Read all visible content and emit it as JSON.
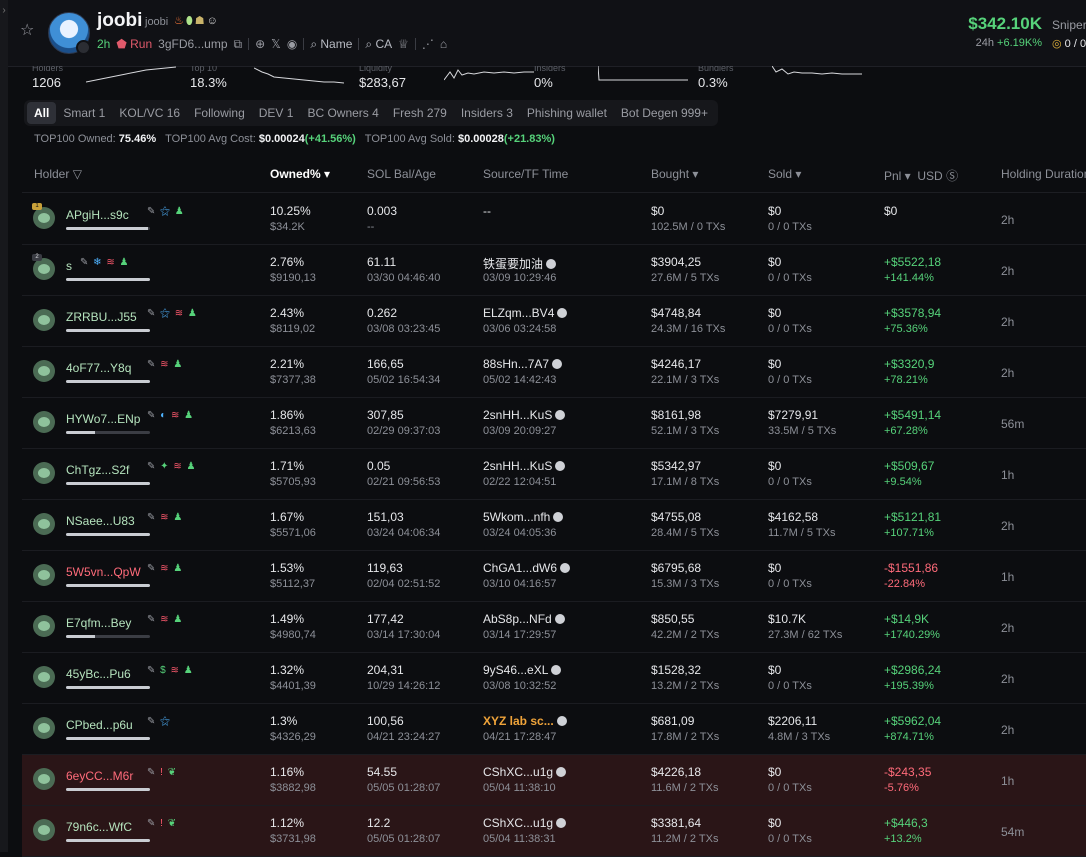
{
  "token": {
    "name": "joobi",
    "symbol": "joobi",
    "age": "2h",
    "run_label": "Run",
    "address": "3gFD6...ump",
    "name_link": "Name",
    "ca_link": "CA",
    "price": "$342.10K",
    "change_period": "24h",
    "change": "+6.19K%",
    "sniper_label": "Sniper",
    "sniper_value": "0 / 0"
  },
  "stats": [
    {
      "label": "Holders",
      "value": "1206"
    },
    {
      "label": "Top 10",
      "value": "18.3%"
    },
    {
      "label": "Liquidity",
      "value": "$283,67"
    },
    {
      "label": "Insiders",
      "value": "0%"
    },
    {
      "label": "Bundlers",
      "value": "0.3%"
    }
  ],
  "filters": [
    {
      "label": "All",
      "active": true
    },
    {
      "label": "Smart 1"
    },
    {
      "label": "KOL/VC 16"
    },
    {
      "label": "Following"
    },
    {
      "label": "DEV 1"
    },
    {
      "label": "BC Owners 4"
    },
    {
      "label": "Fresh 279"
    },
    {
      "label": "Insiders 3"
    },
    {
      "label": "Phishing wallet"
    },
    {
      "label": "Bot Degen 999+"
    }
  ],
  "summary": {
    "owned_label": "TOP100 Owned:",
    "owned_value": "75.46%",
    "avg_cost_label": "TOP100 Avg Cost:",
    "avg_cost_value": "$0.00024",
    "avg_cost_change": "(+41.56%)",
    "avg_sold_label": "TOP100 Avg Sold:",
    "avg_sold_value": "$0.00028",
    "avg_sold_change": "(+21.83%)"
  },
  "columns": {
    "holder": "Holder",
    "owned": "Owned% ▾",
    "sol": "SOL Bal/Age",
    "source": "Source/TF Time",
    "bought": "Bought ▾",
    "sold": "Sold ▾",
    "pnl": "Pnl ▾",
    "usd": "USD",
    "duration": "Holding Duration"
  },
  "holders": [
    {
      "rank": "1",
      "name": "APgiH...s9c",
      "bar": 0.98,
      "tags": "✎ ⚝ ♟",
      "owned": "10.25%",
      "owned_usd": "$34.2K",
      "sol": "0.003",
      "age": "--",
      "source": "--",
      "source_time": "",
      "bought": "$0",
      "bought_sub": "102.5M / 0 TXs",
      "sold": "$0",
      "sold_sub": "0 / 0 TXs",
      "pnl": "$0",
      "pnl_pct": "",
      "pnl_type": "neutral",
      "duration": "2h",
      "flag": false,
      "name_red": false
    },
    {
      "rank": "2",
      "name": "s",
      "bar": 1.0,
      "tags": "✎ ❄ ≋ ♟",
      "owned": "2.76%",
      "owned_usd": "$9190,13",
      "sol": "61.11",
      "age": "03/30 04:46:40",
      "source": "铁蛋要加油",
      "source_time": "03/09 10:29:46",
      "bought": "$3904,25",
      "bought_sub": "27.6M / 5 TXs",
      "sold": "$0",
      "sold_sub": "0 / 0 TXs",
      "pnl": "+$5522,18",
      "pnl_pct": "+141.44%",
      "pnl_type": "pos",
      "duration": "2h",
      "flag": false,
      "name_red": false
    },
    {
      "rank": "",
      "name": "ZRRBU...J55",
      "bar": 1.0,
      "tags": "✎ ⚝ ≋ ♟",
      "owned": "2.43%",
      "owned_usd": "$8119,02",
      "sol": "0.262",
      "age": "03/08 03:23:45",
      "source": "ELZqm...BV4",
      "source_time": "03/06 03:24:58",
      "bought": "$4748,84",
      "bought_sub": "24.3M / 16 TXs",
      "sold": "$0",
      "sold_sub": "0 / 0 TXs",
      "pnl": "+$3578,94",
      "pnl_pct": "+75.36%",
      "pnl_type": "pos",
      "duration": "2h",
      "flag": false,
      "name_red": false
    },
    {
      "rank": "",
      "name": "4oF77...Y8q",
      "bar": 1.0,
      "tags": "✎ ≋ ♟",
      "owned": "2.21%",
      "owned_usd": "$7377,38",
      "sol": "166,65",
      "age": "05/02 16:54:34",
      "source": "88sHn...7A7",
      "source_time": "05/02 14:42:43",
      "bought": "$4246,17",
      "bought_sub": "22.1M / 3 TXs",
      "sold": "$0",
      "sold_sub": "0 / 0 TXs",
      "pnl": "+$3320,9",
      "pnl_pct": "+78.21%",
      "pnl_type": "pos",
      "duration": "2h",
      "flag": false,
      "name_red": false
    },
    {
      "rank": "",
      "name": "HYWo7...ENp",
      "bar": 0.35,
      "tags": "✎ ◐ ≋ ♟",
      "owned": "1.86%",
      "owned_usd": "$6213,63",
      "sol": "307,85",
      "age": "02/29 09:37:03",
      "source": "2snHH...KuS",
      "source_time": "03/09 20:09:27",
      "bought": "$8161,98",
      "bought_sub": "52.1M / 3 TXs",
      "sold": "$7279,91",
      "sold_sub": "33.5M / 5 TXs",
      "pnl": "+$5491,14",
      "pnl_pct": "+67.28%",
      "pnl_type": "pos",
      "duration": "56m",
      "flag": false,
      "name_red": false
    },
    {
      "rank": "",
      "name": "ChTgz...S2f",
      "bar": 1.0,
      "tags": "✎ ✦ ≋ ♟",
      "owned": "1.71%",
      "owned_usd": "$5705,93",
      "sol": "0.05",
      "age": "02/21 09:56:53",
      "source": "2snHH...KuS",
      "source_time": "02/22 12:04:51",
      "bought": "$5342,97",
      "bought_sub": "17.1M / 8 TXs",
      "sold": "$0",
      "sold_sub": "0 / 0 TXs",
      "pnl": "+$509,67",
      "pnl_pct": "+9.54%",
      "pnl_type": "pos",
      "duration": "1h",
      "flag": false,
      "name_red": false
    },
    {
      "rank": "",
      "name": "NSaee...U83",
      "bar": 1.0,
      "tags": "✎ ≋ ♟",
      "owned": "1.67%",
      "owned_usd": "$5571,06",
      "sol": "151,03",
      "age": "03/24 04:06:34",
      "source": "5Wkom...nfh",
      "source_time": "03/24 04:05:36",
      "bought": "$4755,08",
      "bought_sub": "28.4M / 5 TXs",
      "sold": "$4162,58",
      "sold_sub": "11.7M / 5 TXs",
      "pnl": "+$5121,81",
      "pnl_pct": "+107.71%",
      "pnl_type": "pos",
      "duration": "2h",
      "flag": false,
      "name_red": false
    },
    {
      "rank": "",
      "name": "5W5vn...QpW",
      "bar": 1.0,
      "tags": "✎ ≋ ♟",
      "owned": "1.53%",
      "owned_usd": "$5112,37",
      "sol": "119,63",
      "age": "02/04 02:51:52",
      "source": "ChGA1...dW6",
      "source_time": "03/10 04:16:57",
      "bought": "$6795,68",
      "bought_sub": "15.3M / 3 TXs",
      "sold": "$0",
      "sold_sub": "0 / 0 TXs",
      "pnl": "-$1551,86",
      "pnl_pct": "-22.84%",
      "pnl_type": "neg",
      "duration": "1h",
      "flag": false,
      "name_red": true
    },
    {
      "rank": "",
      "name": "E7qfm...Bey",
      "bar": 0.35,
      "tags": "✎ ≋ ♟",
      "owned": "1.49%",
      "owned_usd": "$4980,74",
      "sol": "177,42",
      "age": "03/14 17:30:04",
      "source": "AbS8p...NFd",
      "source_time": "03/14 17:29:57",
      "bought": "$850,55",
      "bought_sub": "42.2M / 2 TXs",
      "sold": "$10.7K",
      "sold_sub": "27.3M / 62 TXs",
      "pnl": "+$14,9K",
      "pnl_pct": "+1740.29%",
      "pnl_type": "pos",
      "duration": "2h",
      "flag": false,
      "name_red": false
    },
    {
      "rank": "",
      "name": "45yBc...Pu6",
      "bar": 1.0,
      "tags": "✎ $ ≋ ♟",
      "owned": "1.32%",
      "owned_usd": "$4401,39",
      "sol": "204,31",
      "age": "10/29 14:26:12",
      "source": "9yS46...eXL",
      "source_time": "03/08 10:32:52",
      "bought": "$1528,32",
      "bought_sub": "13.2M / 2 TXs",
      "sold": "$0",
      "sold_sub": "0 / 0 TXs",
      "pnl": "+$2986,24",
      "pnl_pct": "+195.39%",
      "pnl_type": "pos",
      "duration": "2h",
      "flag": false,
      "name_red": false
    },
    {
      "rank": "",
      "name": "CPbed...p6u",
      "bar": 1.0,
      "tags": "✎ ⚝",
      "owned": "1.3%",
      "owned_usd": "$4326,29",
      "sol": "100,56",
      "age": "04/21 23:24:27",
      "source": "XYZ lab sc...",
      "source_time": "04/21 17:28:47",
      "bought": "$681,09",
      "bought_sub": "17.8M / 2 TXs",
      "sold": "$2206,11",
      "sold_sub": "4.8M / 3 TXs",
      "pnl": "+$5962,04",
      "pnl_pct": "+874.71%",
      "pnl_type": "pos",
      "duration": "2h",
      "flag": false,
      "name_red": false,
      "source_orange": true
    },
    {
      "rank": "",
      "name": "6eyCC...M6r",
      "bar": 1.0,
      "tags": "✎ ! ❦",
      "owned": "1.16%",
      "owned_usd": "$3882,98",
      "sol": "54.55",
      "age": "05/05 01:28:07",
      "source": "CShXC...u1g",
      "source_time": "05/04 11:38:10",
      "bought": "$4226,18",
      "bought_sub": "11.6M / 2 TXs",
      "sold": "$0",
      "sold_sub": "0 / 0 TXs",
      "pnl": "-$243,35",
      "pnl_pct": "-5.76%",
      "pnl_type": "neg",
      "duration": "1h",
      "flag": true,
      "name_red": true
    },
    {
      "rank": "",
      "name": "79n6c...WfC",
      "bar": 1.0,
      "tags": "✎ ! ❦",
      "owned": "1.12%",
      "owned_usd": "$3731,98",
      "sol": "12.2",
      "age": "05/05 01:28:07",
      "source": "CShXC...u1g",
      "source_time": "05/04 11:38:31",
      "bought": "$3381,64",
      "bought_sub": "11.2M / 2 TXs",
      "sold": "$0",
      "sold_sub": "0 / 0 TXs",
      "pnl": "+$446,3",
      "pnl_pct": "+13.2%",
      "pnl_type": "pos",
      "duration": "54m",
      "flag": true,
      "name_red": false
    }
  ]
}
